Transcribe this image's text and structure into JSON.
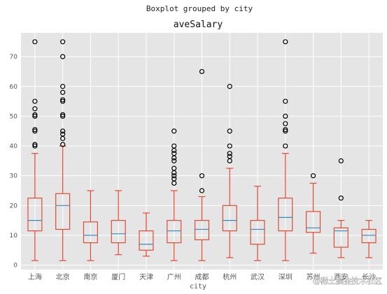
{
  "chart_data": {
    "type": "boxplot",
    "suptitle": "Boxplot grouped by city",
    "title": "aveSalary",
    "xlabel": "city",
    "ylabel": "",
    "ylim": [
      -1.5,
      78
    ],
    "yticks": [
      0,
      10,
      20,
      30,
      40,
      50,
      60,
      70
    ],
    "grid": true,
    "categories": [
      "上海",
      "北京",
      "南京",
      "厦门",
      "天津",
      "广州",
      "成都",
      "杭州",
      "武汉",
      "深圳",
      "苏州",
      "西安",
      "长沙"
    ],
    "boxes": [
      {
        "whislo": 1.5,
        "q1": 11.5,
        "med": 15,
        "q3": 22.5,
        "whishi": 37.5,
        "fliers": [
          40,
          40.5,
          45,
          45.5,
          50,
          50.5,
          52.5,
          55,
          75
        ]
      },
      {
        "whislo": 1.5,
        "q1": 12,
        "med": 20,
        "q3": 24,
        "whishi": 40,
        "fliers": [
          40.5,
          42.5,
          44,
          45,
          50,
          50.5,
          55,
          55.5,
          58,
          60,
          70,
          75
        ]
      },
      {
        "whislo": 1.5,
        "q1": 7.5,
        "med": 10,
        "q3": 14.5,
        "whishi": 25,
        "fliers": []
      },
      {
        "whislo": 3.5,
        "q1": 7.5,
        "med": 10.5,
        "q3": 15,
        "whishi": 25,
        "fliers": []
      },
      {
        "whislo": 3,
        "q1": 5,
        "med": 7,
        "q3": 11.5,
        "whishi": 17.5,
        "fliers": []
      },
      {
        "whislo": 1.5,
        "q1": 7.5,
        "med": 11.5,
        "q3": 15,
        "whishi": 25,
        "fliers": [
          27.5,
          29,
          30,
          31,
          32.5,
          35,
          36,
          37.5,
          38.5,
          40,
          45
        ]
      },
      {
        "whislo": 1.5,
        "q1": 8.5,
        "med": 12,
        "q3": 15,
        "whishi": 23,
        "fliers": [
          25,
          30,
          65
        ]
      },
      {
        "whislo": 2.5,
        "q1": 11.5,
        "med": 15,
        "q3": 20,
        "whishi": 32.5,
        "fliers": [
          35,
          36.5,
          37.5,
          40,
          45,
          60
        ]
      },
      {
        "whislo": 1.5,
        "q1": 7,
        "med": 12,
        "q3": 15,
        "whishi": 26.5,
        "fliers": []
      },
      {
        "whislo": 1.5,
        "q1": 11.5,
        "med": 16,
        "q3": 22.5,
        "whishi": 37.5,
        "fliers": [
          40,
          45,
          45.5,
          47.5,
          50,
          55,
          75
        ]
      },
      {
        "whislo": 4,
        "q1": 11,
        "med": 12.5,
        "q3": 18,
        "whishi": 27.5,
        "fliers": [
          30
        ]
      },
      {
        "whislo": 2.5,
        "q1": 6,
        "med": 11.5,
        "q3": 12.5,
        "whishi": 15,
        "fliers": [
          22.5,
          35
        ]
      },
      {
        "whislo": 2.5,
        "q1": 7.5,
        "med": 10,
        "q3": 12,
        "whishi": 15,
        "fliers": []
      }
    ],
    "colors": {
      "plot_bg": "#e5e5e5",
      "grid": "#ffffff",
      "box": "#e24a33",
      "median": "#348abd",
      "flier": "#000000"
    }
  },
  "watermark": {
    "text": "@稀土掘金技术社区"
  }
}
